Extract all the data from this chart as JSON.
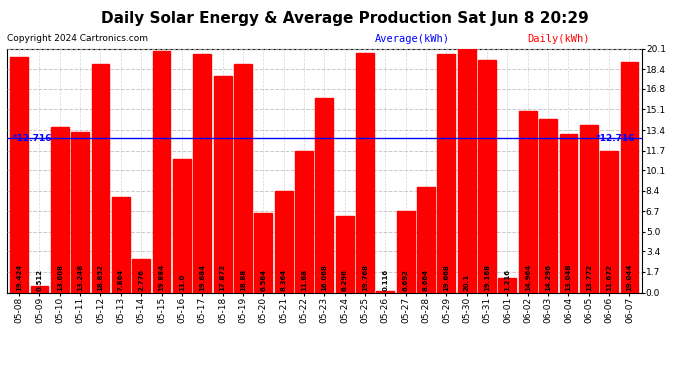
{
  "title": "Daily Solar Energy & Average Production Sat Jun 8 20:29",
  "copyright": "Copyright 2024 Cartronics.com",
  "legend_avg": "Average(kWh)",
  "legend_daily": "Daily(kWh)",
  "average": 12.716,
  "avg_label": "*12.716",
  "categories": [
    "05-08",
    "05-09",
    "05-10",
    "05-11",
    "05-12",
    "05-13",
    "05-14",
    "05-15",
    "05-16",
    "05-17",
    "05-18",
    "05-19",
    "05-20",
    "05-21",
    "05-22",
    "05-23",
    "05-24",
    "05-25",
    "05-26",
    "05-27",
    "05-28",
    "05-29",
    "05-30",
    "05-31",
    "06-01",
    "06-02",
    "06-03",
    "06-04",
    "06-05",
    "06-06",
    "06-07"
  ],
  "values": [
    19.424,
    0.512,
    13.608,
    13.248,
    18.852,
    7.864,
    2.776,
    19.884,
    11.0,
    19.684,
    17.872,
    18.88,
    6.584,
    8.364,
    11.68,
    16.068,
    6.296,
    19.768,
    0.116,
    6.692,
    8.664,
    19.668,
    20.1,
    19.168,
    1.216,
    14.964,
    14.296,
    13.048,
    13.772,
    11.672,
    19.044
  ],
  "bar_color": "#ff0000",
  "avg_line_color": "#0000ff",
  "ylim": [
    0.0,
    20.1
  ],
  "yticks": [
    0.0,
    1.7,
    3.4,
    5.0,
    6.7,
    8.4,
    10.1,
    11.7,
    13.4,
    15.1,
    16.8,
    18.4,
    20.1
  ],
  "background_color": "#ffffff",
  "grid_color": "#bbbbbb",
  "title_fontsize": 11,
  "copyright_fontsize": 6.5,
  "bar_value_fontsize": 5.0,
  "legend_fontsize": 7.5,
  "tick_fontsize": 6.5
}
